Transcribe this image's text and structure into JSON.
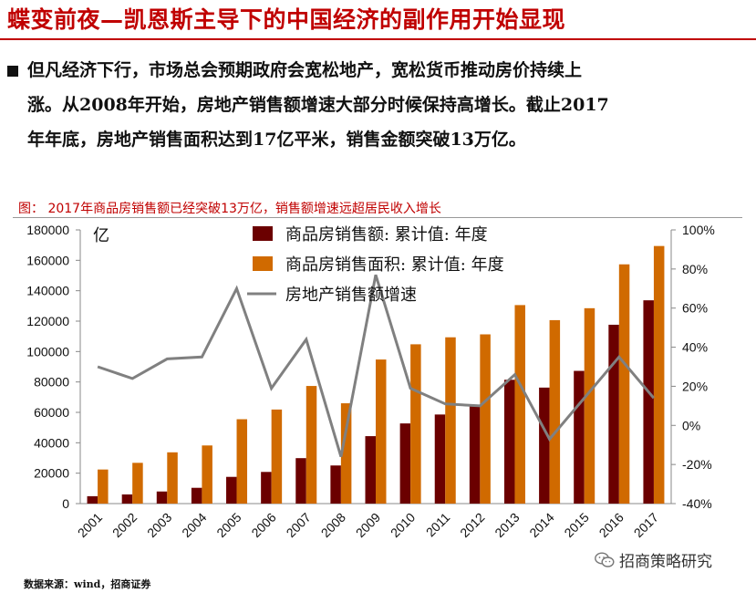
{
  "page": {
    "title": "蝶变前夜—凯恩斯主导下的中国经济的副作用开始显现",
    "paragraph_lines": [
      "但凡经济下行，市场总会预期政府会宽松地产，宽松货币推动房价持续上",
      "涨。从2008年开始，房地产销售额增速大部分时候保持高增长。截止2017",
      "年年底，房地产销售面积达到17亿平米，销售金额突破13万亿。"
    ],
    "figure_caption": "图：  2017年商品房销售额已经突破13万亿，销售额增速远超居民收入增长",
    "source": "数据来源：wind，招商证券",
    "watermark": "招商策略研究",
    "watermark_icon": "wechat-icon"
  },
  "chart_data": {
    "type": "bar",
    "unit_label": "亿",
    "categories": [
      "2001",
      "2002",
      "2003",
      "2004",
      "2005",
      "2006",
      "2007",
      "2008",
      "2009",
      "2010",
      "2011",
      "2012",
      "2013",
      "2014",
      "2015",
      "2016",
      "2017"
    ],
    "series": [
      {
        "name": "商品房销售额: 累计值: 年度",
        "type": "bar",
        "axis": "left",
        "color": "#6b0000",
        "values": [
          4863,
          6032,
          7956,
          10376,
          17576,
          20826,
          29889,
          25068,
          44355,
          52721,
          58589,
          64456,
          81428,
          76292,
          87281,
          117627,
          133701
        ]
      },
      {
        "name": "商品房销售面积: 累计值: 年度",
        "type": "bar",
        "axis": "left",
        "color": "#d06a00",
        "values": [
          22412,
          26808,
          33718,
          38232,
          55486,
          61857,
          77355,
          65970,
          94755,
          104765,
          109367,
          111304,
          130551,
          120649,
          128495,
          157349,
          169408
        ]
      },
      {
        "name": "房地产销售额增速",
        "type": "line",
        "axis": "right",
        "color": "#808080",
        "values": [
          0.3,
          0.24,
          0.34,
          0.35,
          0.7,
          0.19,
          0.44,
          -0.16,
          0.77,
          0.19,
          0.11,
          0.1,
          0.26,
          -0.07,
          0.14,
          0.35,
          0.14
        ]
      }
    ],
    "y_left": {
      "min": 0,
      "max": 180000,
      "ticks": [
        0,
        20000,
        40000,
        60000,
        80000,
        100000,
        120000,
        140000,
        160000,
        180000
      ]
    },
    "y_right": {
      "min": -0.4,
      "max": 1.0,
      "ticks": [
        "-40%",
        "-20%",
        "0%",
        "20%",
        "40%",
        "60%",
        "80%",
        "100%"
      ]
    },
    "legend_position": "top-center",
    "grid": false
  }
}
